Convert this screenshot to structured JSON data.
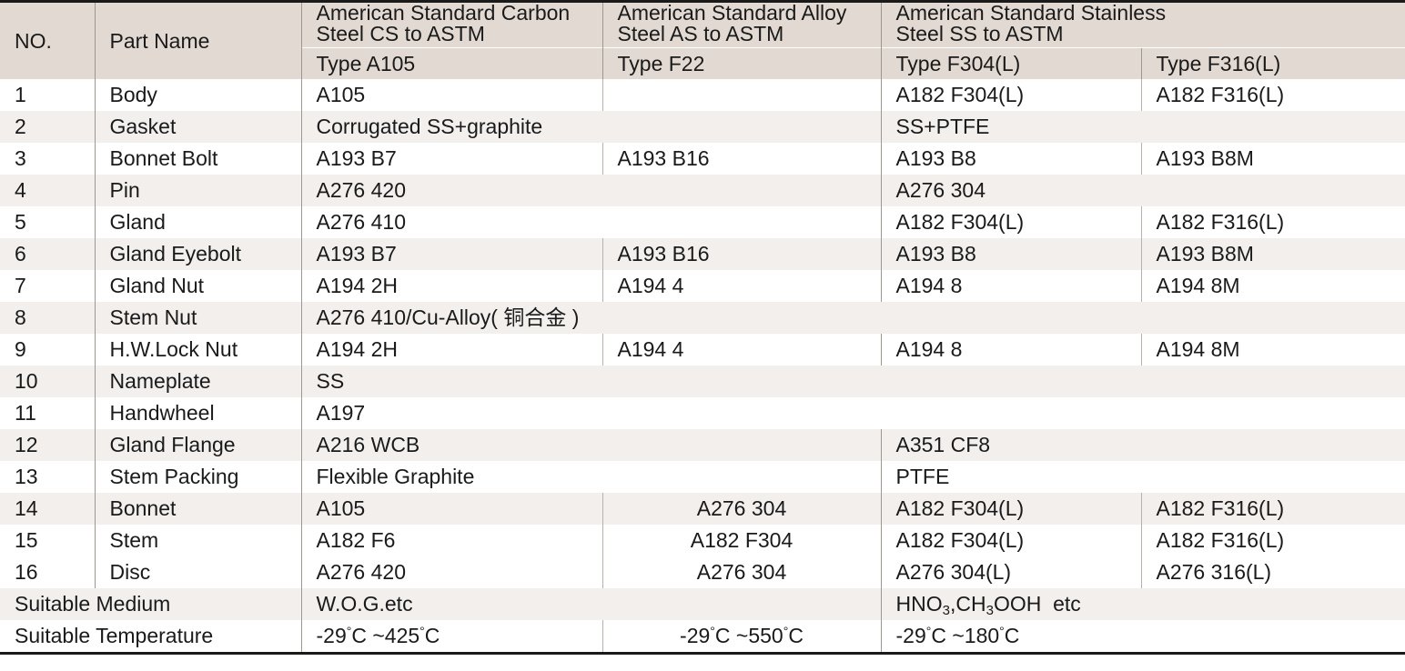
{
  "header": {
    "no": "NO.",
    "part_name": "Part Name",
    "cs_title_1": "American Standard Carbon",
    "cs_title_2": "Steel CS to ASTM",
    "as_title_1": "American Standard Alloy",
    "as_title_2": "Steel AS to ASTM",
    "ss_title_1": "American Standard Stainless",
    "ss_title_2": "Steel SS to ASTM",
    "type_cs": "Type A105",
    "type_as": "Type F22",
    "type_ss304": "Type F304(L)",
    "type_ss316": "Type F316(L)"
  },
  "rows": [
    {
      "no": "1",
      "part": "Body",
      "cs": "A105",
      "as": "",
      "f304": "A182 F304(L)",
      "f316": "A182 F316(L)"
    },
    {
      "no": "2",
      "part": "Gasket",
      "cs_as": "Corrugated SS+graphite",
      "ss": "SS+PTFE"
    },
    {
      "no": "3",
      "part": "Bonnet Bolt",
      "cs": "A193 B7",
      "as": "A193 B16",
      "f304": "A193 B8",
      "f316": "A193 B8M"
    },
    {
      "no": "4",
      "part": "Pin",
      "cs_as": "A276 420",
      "ss": "A276 304"
    },
    {
      "no": "5",
      "part": "Gland",
      "cs_as": "A276 410",
      "f304": "A182 F304(L)",
      "f316": "A182 F316(L)"
    },
    {
      "no": "6",
      "part": "Gland Eyebolt",
      "cs": "A193 B7",
      "as": "A193 B16",
      "f304": "A193 B8",
      "f316": "A193 B8M"
    },
    {
      "no": "7",
      "part": "Gland Nut",
      "cs": "A194 2H",
      "as": "A194 4",
      "f304": "A194 8",
      "f316": "A194 8M"
    },
    {
      "no": "8",
      "part": "Stem Nut",
      "all": "A276 410/Cu-Alloy( 铜合金 )"
    },
    {
      "no": "9",
      "part": "H.W.Lock Nut",
      "cs": "A194 2H",
      "as": "A194 4",
      "f304": "A194 8",
      "f316": "A194 8M"
    },
    {
      "no": "10",
      "part": "Nameplate",
      "all": "SS"
    },
    {
      "no": "11",
      "part": "Handwheel",
      "all": "A197"
    },
    {
      "no": "12",
      "part": "Gland Flange",
      "cs_as": "A216 WCB",
      "ss": "A351 CF8"
    },
    {
      "no": "13",
      "part": "Stem Packing",
      "cs_as": "Flexible Graphite",
      "ss": "PTFE"
    },
    {
      "no": "14",
      "part": "Bonnet",
      "cs": "A105",
      "as": "A276 304",
      "f304": "A182 F304(L)",
      "f316": "A182 F316(L)"
    },
    {
      "no": "15",
      "part": "Stem",
      "cs": "A182 F6",
      "as": "A182 F304",
      "f304": "A182 F304(L)",
      "f316": "A182 F316(L)"
    },
    {
      "no": "16",
      "part": "Disc",
      "cs": "A276 420",
      "as": "A276 304",
      "f304": "A276 304(L)",
      "f316": "A276 316(L)"
    }
  ],
  "medium": {
    "label": "Suitable Medium",
    "cs_as": "W.O.G.etc",
    "ss_parts": [
      "HNO",
      "3",
      ",CH",
      "3",
      "OOH  etc"
    ]
  },
  "temperature": {
    "label": "Suitable Temperature",
    "cs_parts": [
      "-29",
      "°",
      "C ~425",
      "°",
      "C"
    ],
    "as_parts": [
      "-29",
      "°",
      "C ~550",
      "°",
      "C"
    ],
    "ss_parts": [
      "-29",
      "°",
      "C ~180",
      "°",
      "C"
    ]
  }
}
